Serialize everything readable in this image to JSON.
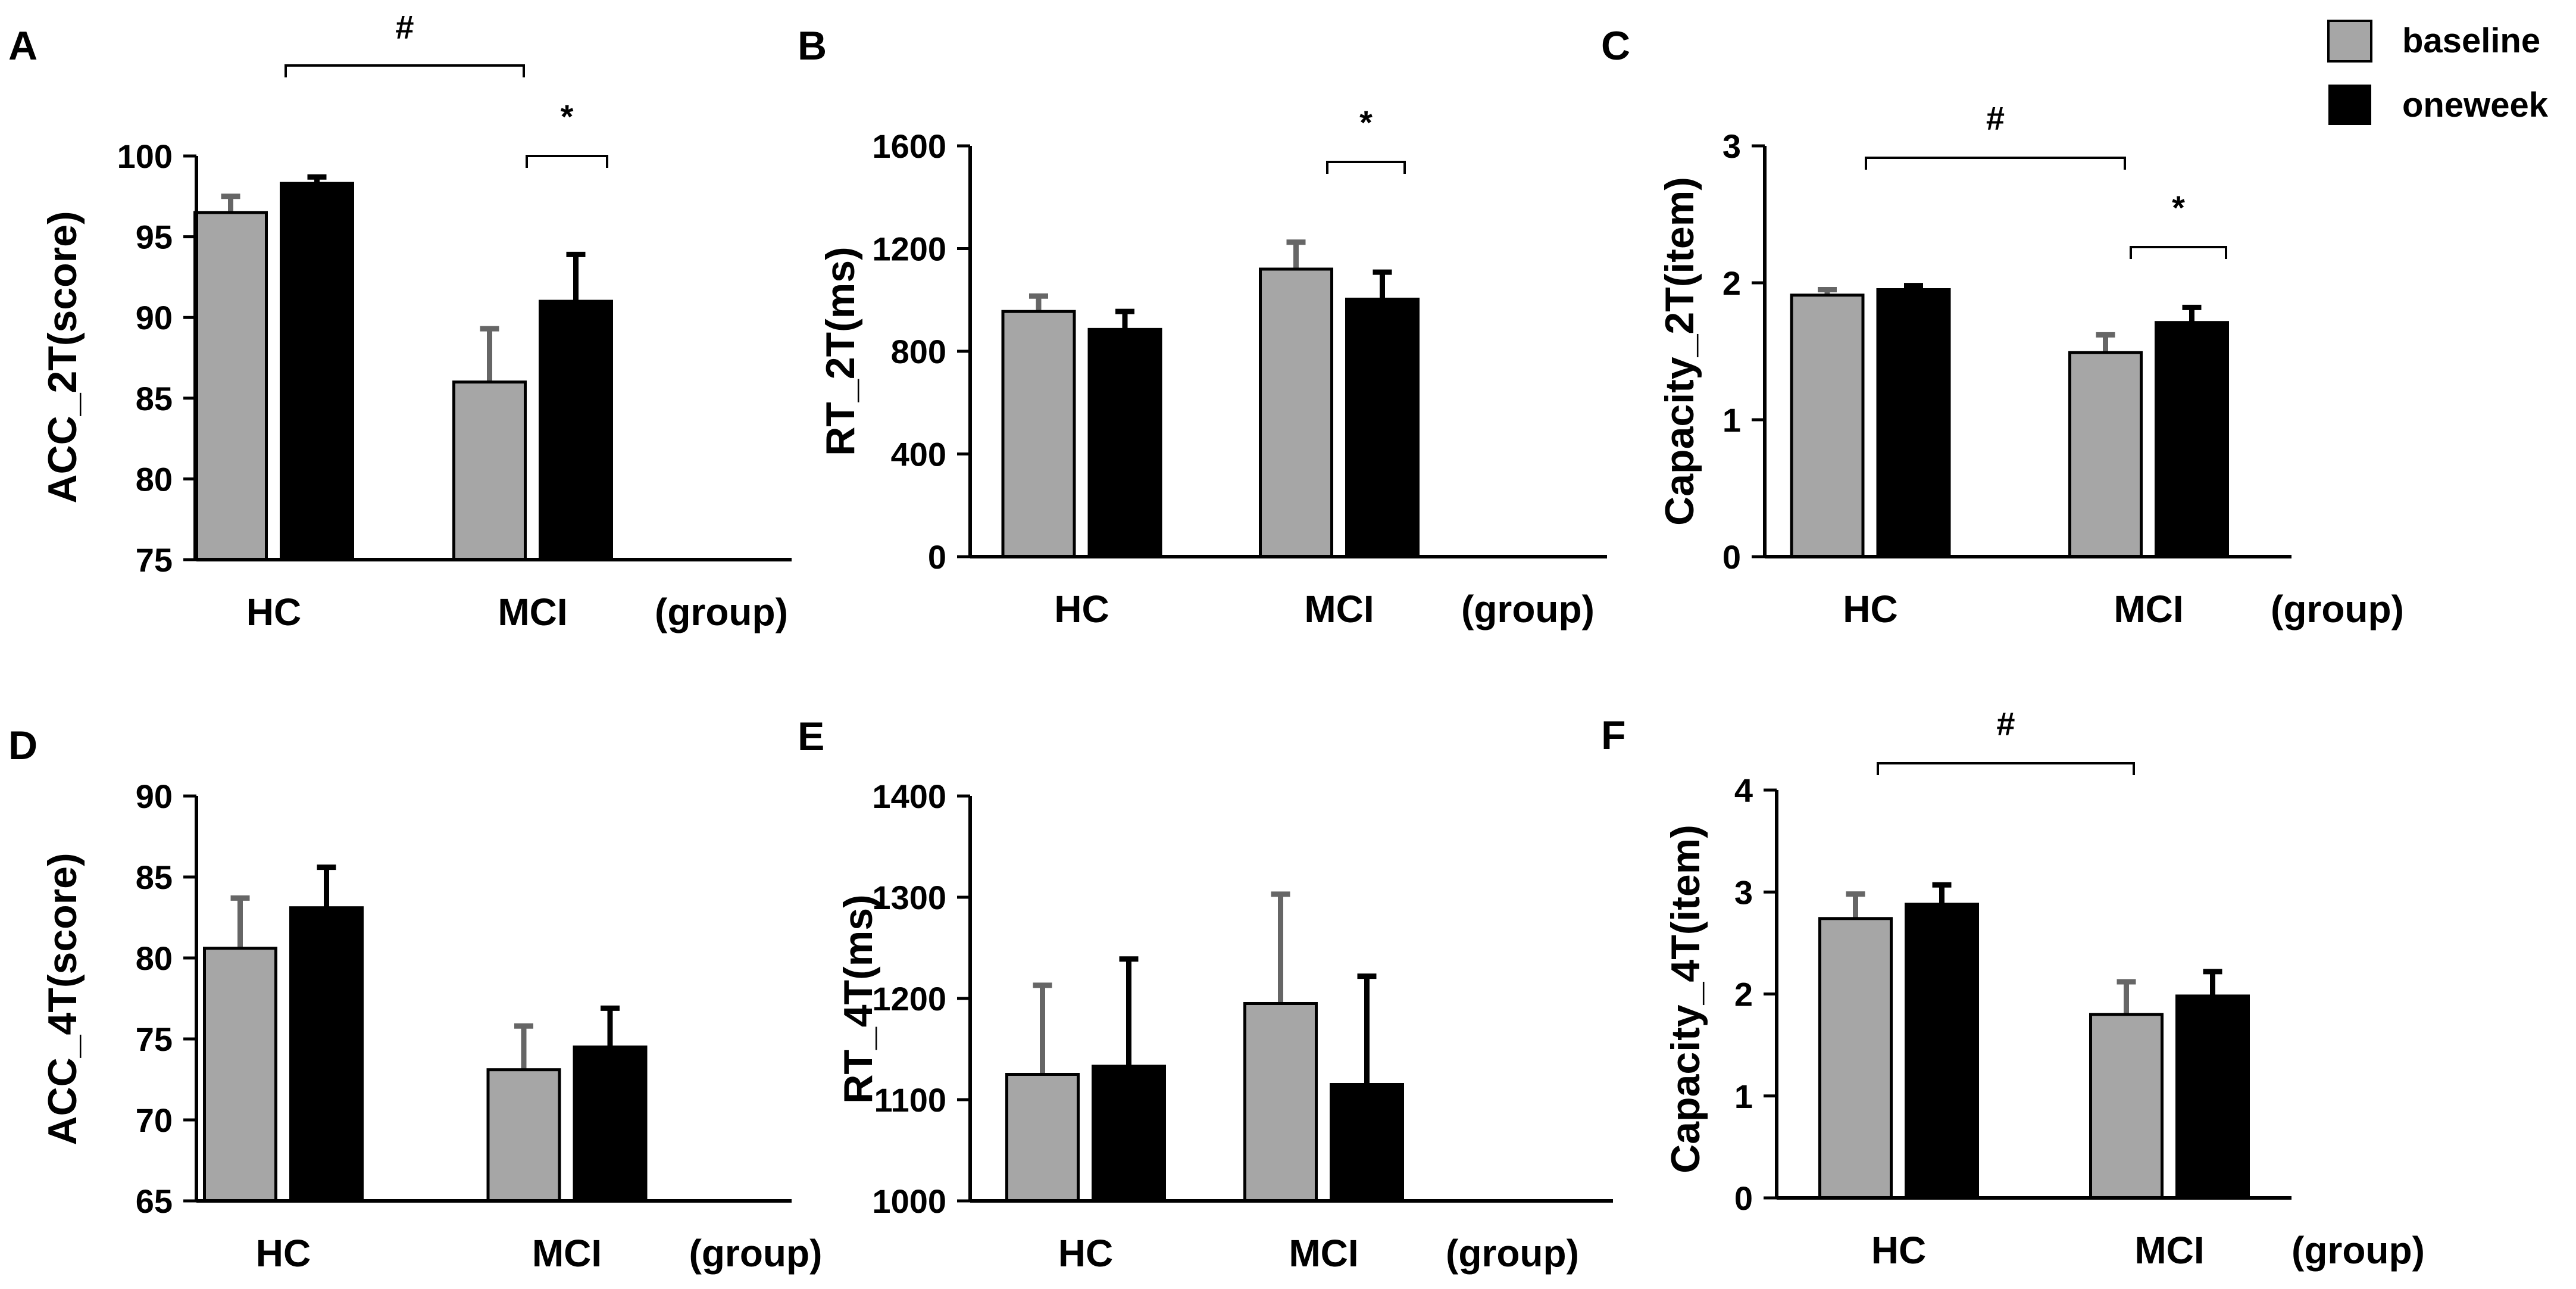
{
  "legend": {
    "baseline_label": "baseline",
    "oneweek_label": "oneweek"
  },
  "colors": {
    "baseline": "#a6a6a6",
    "oneweek": "#000000",
    "baseline_err": "#666666",
    "oneweek_err": "#000000"
  },
  "chart_data": [
    {
      "panel": "A",
      "type": "bar",
      "ylabel": "ACC_2T(score)",
      "categories": [
        "HC",
        "MCI"
      ],
      "xlabel": "(group)",
      "ylim": [
        75,
        100
      ],
      "yticks": [
        "75",
        "80",
        "85",
        "90",
        "95",
        "100"
      ],
      "series": [
        {
          "name": "baseline",
          "values": [
            96.5,
            86.0
          ],
          "errors": [
            1.0,
            3.3
          ]
        },
        {
          "name": "oneweek",
          "values": [
            98.3,
            91.0
          ],
          "errors": [
            0.4,
            2.9
          ]
        }
      ],
      "annotations": [
        {
          "type": "between_groups",
          "label": "#"
        },
        {
          "type": "within_group",
          "group": "MCI",
          "label": "*"
        }
      ]
    },
    {
      "panel": "B",
      "type": "bar",
      "ylabel": "RT_2T(ms)",
      "categories": [
        "HC",
        "MCI"
      ],
      "xlabel": "(group)",
      "ylim": [
        0,
        1600
      ],
      "yticks": [
        "0",
        "400",
        "800",
        "1200",
        "1600"
      ],
      "series": [
        {
          "name": "baseline",
          "values": [
            955,
            1120
          ],
          "errors": [
            60,
            105
          ]
        },
        {
          "name": "oneweek",
          "values": [
            885,
            1003
          ],
          "errors": [
            70,
            105
          ]
        }
      ],
      "annotations": [
        {
          "type": "within_group",
          "group": "MCI",
          "label": "*"
        }
      ]
    },
    {
      "panel": "C",
      "type": "bar",
      "ylabel": "Capacity_2T(item)",
      "categories": [
        "HC",
        "MCI"
      ],
      "xlabel": "(group)",
      "ylim": [
        0,
        3
      ],
      "yticks": [
        "0",
        "1",
        "2",
        "3"
      ],
      "series": [
        {
          "name": "baseline",
          "values": [
            1.91,
            1.49
          ],
          "errors": [
            0.04,
            0.13
          ]
        },
        {
          "name": "oneweek",
          "values": [
            1.95,
            1.71
          ],
          "errors": [
            0.03,
            0.11
          ]
        }
      ],
      "annotations": [
        {
          "type": "between_groups",
          "label": "#"
        },
        {
          "type": "within_group",
          "group": "MCI",
          "label": "*"
        }
      ]
    },
    {
      "panel": "D",
      "type": "bar",
      "ylabel": "ACC_4T(score)",
      "categories": [
        "HC",
        "MCI"
      ],
      "xlabel": "(group)",
      "ylim": [
        65,
        90
      ],
      "yticks": [
        "65",
        "70",
        "75",
        "80",
        "85",
        "90"
      ],
      "series": [
        {
          "name": "baseline",
          "values": [
            80.6,
            73.1
          ],
          "errors": [
            3.1,
            2.7
          ]
        },
        {
          "name": "oneweek",
          "values": [
            83.1,
            74.5
          ],
          "errors": [
            2.5,
            2.4
          ]
        }
      ],
      "annotations": []
    },
    {
      "panel": "E",
      "type": "bar",
      "ylabel": "RT_4T(ms)",
      "categories": [
        "HC",
        "MCI"
      ],
      "xlabel": "(group)",
      "ylim": [
        1000,
        1400
      ],
      "yticks": [
        "1000",
        "1100",
        "1200",
        "1300",
        "1400"
      ],
      "series": [
        {
          "name": "baseline",
          "values": [
            1125,
            1195
          ],
          "errors": [
            88,
            108
          ]
        },
        {
          "name": "oneweek",
          "values": [
            1133,
            1115
          ],
          "errors": [
            106,
            107
          ]
        }
      ],
      "annotations": []
    },
    {
      "panel": "F",
      "type": "bar",
      "ylabel": "Capacity_4T(item)",
      "categories": [
        "HC",
        "MCI"
      ],
      "xlabel": "(group)",
      "ylim": [
        0,
        4
      ],
      "yticks": [
        "0",
        "1",
        "2",
        "3",
        "4"
      ],
      "series": [
        {
          "name": "baseline",
          "values": [
            2.74,
            1.8
          ],
          "errors": [
            0.24,
            0.32
          ]
        },
        {
          "name": "oneweek",
          "values": [
            2.88,
            1.98
          ],
          "errors": [
            0.19,
            0.24
          ]
        }
      ],
      "annotations": [
        {
          "type": "between_groups",
          "label": "#"
        }
      ]
    }
  ]
}
